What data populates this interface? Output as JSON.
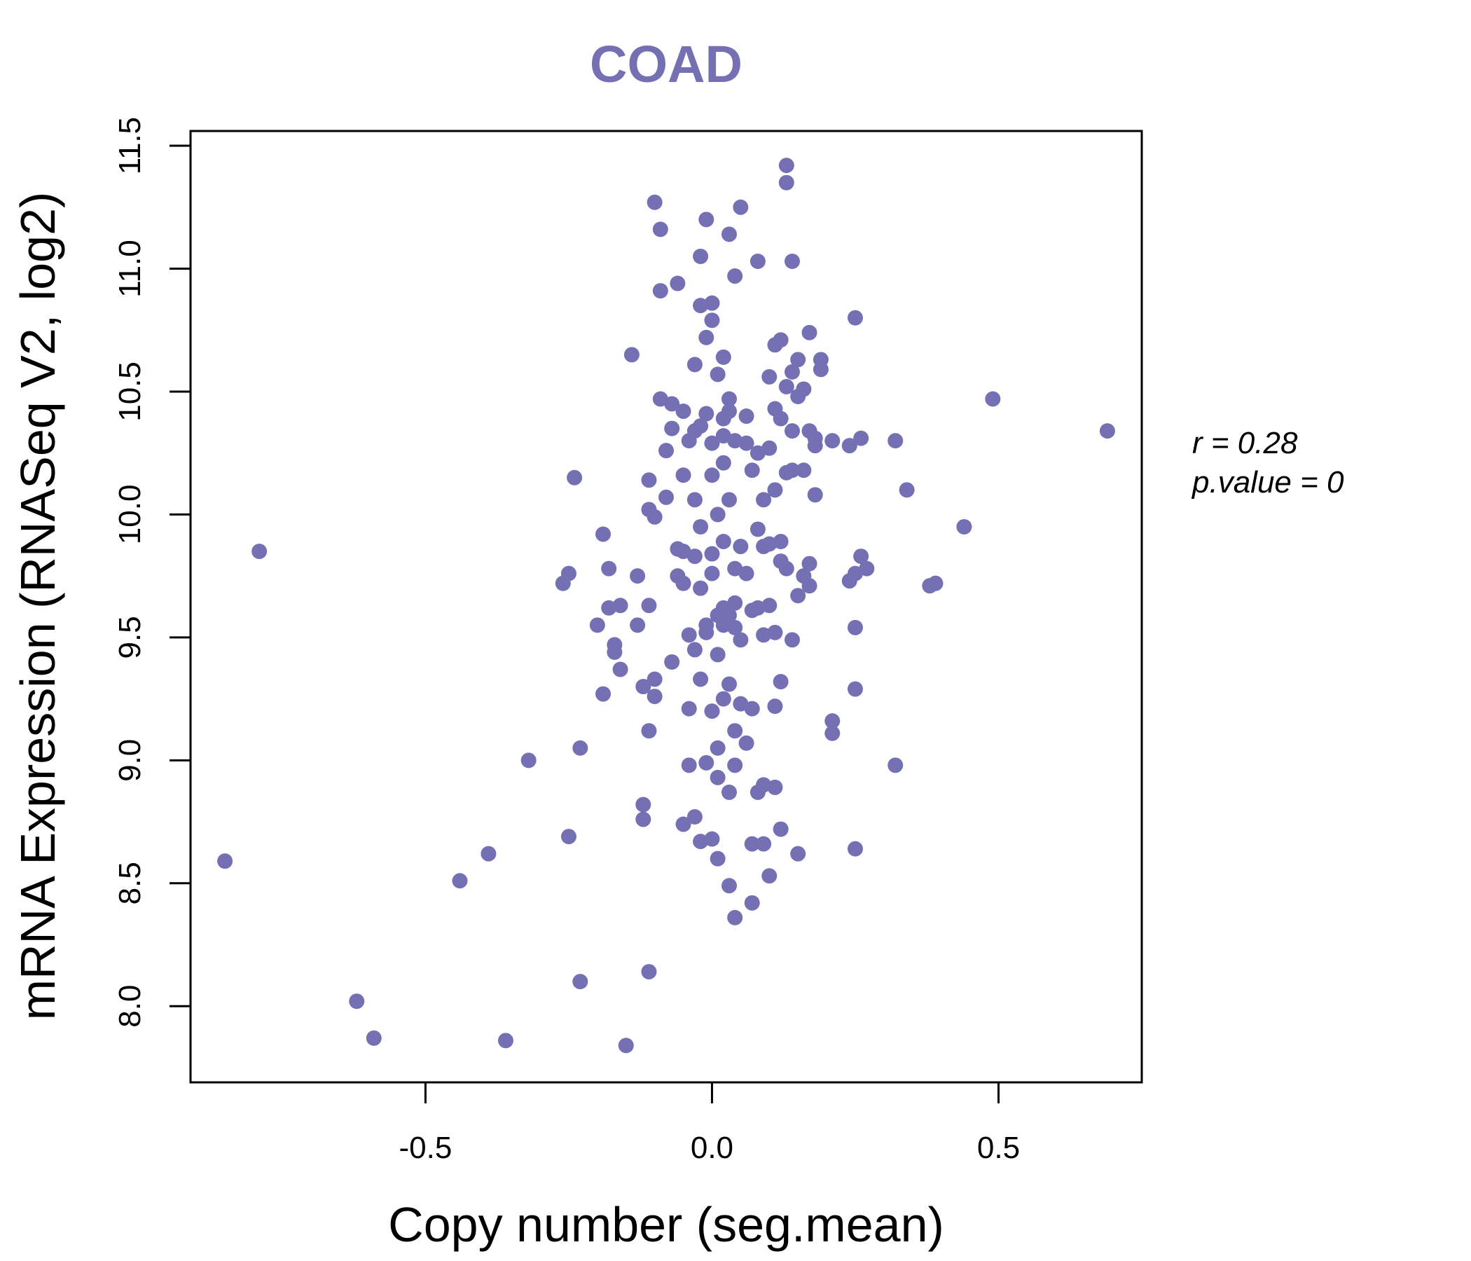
{
  "chart_data": {
    "type": "scatter",
    "title": "COAD",
    "xlabel": "Copy number (seg.mean)",
    "ylabel": "mRNA Expression (RNASeq V2, log2)",
    "xlim": [
      -0.91,
      0.75
    ],
    "ylim": [
      7.69,
      11.56
    ],
    "x_ticks": [
      -0.5,
      0.0,
      0.5
    ],
    "x_tick_labels": [
      "-0.5",
      "0.0",
      "0.5"
    ],
    "y_ticks": [
      8.0,
      8.5,
      9.0,
      9.5,
      10.0,
      10.5,
      11.0,
      11.5
    ],
    "y_tick_labels": [
      "8.0",
      "8.5",
      "9.0",
      "9.5",
      "10.0",
      "10.5",
      "11.0",
      "11.5"
    ],
    "grid": false,
    "marker_color": "#7570b3",
    "annotation": {
      "r_label": "r = 0.28",
      "p_label": "p.value = 0"
    },
    "points": [
      {
        "x": -0.85,
        "y": 8.59
      },
      {
        "x": -0.79,
        "y": 9.85
      },
      {
        "x": -0.62,
        "y": 8.02
      },
      {
        "x": -0.59,
        "y": 7.87
      },
      {
        "x": -0.44,
        "y": 8.51
      },
      {
        "x": -0.39,
        "y": 8.62
      },
      {
        "x": -0.36,
        "y": 7.86
      },
      {
        "x": -0.32,
        "y": 9.0
      },
      {
        "x": -0.26,
        "y": 9.72
      },
      {
        "x": -0.25,
        "y": 9.76
      },
      {
        "x": -0.25,
        "y": 8.69
      },
      {
        "x": -0.24,
        "y": 10.15
      },
      {
        "x": -0.23,
        "y": 9.05
      },
      {
        "x": -0.23,
        "y": 8.1
      },
      {
        "x": -0.2,
        "y": 9.55
      },
      {
        "x": -0.19,
        "y": 9.92
      },
      {
        "x": -0.19,
        "y": 9.27
      },
      {
        "x": -0.18,
        "y": 9.62
      },
      {
        "x": -0.18,
        "y": 9.78
      },
      {
        "x": -0.17,
        "y": 9.47
      },
      {
        "x": -0.17,
        "y": 9.44
      },
      {
        "x": -0.16,
        "y": 9.63
      },
      {
        "x": -0.16,
        "y": 9.37
      },
      {
        "x": -0.15,
        "y": 7.84
      },
      {
        "x": -0.14,
        "y": 10.65
      },
      {
        "x": -0.13,
        "y": 9.75
      },
      {
        "x": -0.13,
        "y": 9.55
      },
      {
        "x": -0.12,
        "y": 9.3
      },
      {
        "x": -0.12,
        "y": 8.82
      },
      {
        "x": -0.12,
        "y": 8.76
      },
      {
        "x": -0.11,
        "y": 8.14
      },
      {
        "x": -0.11,
        "y": 9.12
      },
      {
        "x": -0.11,
        "y": 9.63
      },
      {
        "x": -0.11,
        "y": 10.14
      },
      {
        "x": -0.11,
        "y": 10.02
      },
      {
        "x": -0.1,
        "y": 11.27
      },
      {
        "x": -0.1,
        "y": 9.99
      },
      {
        "x": -0.1,
        "y": 9.33
      },
      {
        "x": -0.1,
        "y": 9.26
      },
      {
        "x": -0.09,
        "y": 10.91
      },
      {
        "x": -0.09,
        "y": 11.16
      },
      {
        "x": -0.09,
        "y": 10.47
      },
      {
        "x": -0.08,
        "y": 10.07
      },
      {
        "x": -0.08,
        "y": 10.26
      },
      {
        "x": -0.07,
        "y": 10.35
      },
      {
        "x": -0.07,
        "y": 10.45
      },
      {
        "x": -0.07,
        "y": 9.4
      },
      {
        "x": -0.06,
        "y": 9.86
      },
      {
        "x": -0.06,
        "y": 9.75
      },
      {
        "x": -0.06,
        "y": 10.94
      },
      {
        "x": -0.05,
        "y": 10.16
      },
      {
        "x": -0.05,
        "y": 9.85
      },
      {
        "x": -0.05,
        "y": 8.74
      },
      {
        "x": -0.04,
        "y": 9.21
      },
      {
        "x": -0.04,
        "y": 9.51
      },
      {
        "x": -0.04,
        "y": 8.98
      },
      {
        "x": -0.03,
        "y": 10.34
      },
      {
        "x": -0.03,
        "y": 10.61
      },
      {
        "x": -0.03,
        "y": 10.06
      },
      {
        "x": -0.03,
        "y": 9.45
      },
      {
        "x": -0.03,
        "y": 8.77
      },
      {
        "x": -0.02,
        "y": 8.67
      },
      {
        "x": -0.02,
        "y": 10.85
      },
      {
        "x": -0.02,
        "y": 11.05
      },
      {
        "x": -0.02,
        "y": 9.33
      },
      {
        "x": -0.02,
        "y": 9.95
      },
      {
        "x": -0.01,
        "y": 11.2
      },
      {
        "x": -0.01,
        "y": 10.72
      },
      {
        "x": -0.01,
        "y": 9.55
      },
      {
        "x": -0.01,
        "y": 8.99
      },
      {
        "x": 0.0,
        "y": 10.79
      },
      {
        "x": 0.0,
        "y": 10.86
      },
      {
        "x": 0.0,
        "y": 10.29
      },
      {
        "x": 0.0,
        "y": 9.84
      },
      {
        "x": 0.0,
        "y": 9.2
      },
      {
        "x": 0.0,
        "y": 8.68
      },
      {
        "x": 0.01,
        "y": 10.57
      },
      {
        "x": 0.01,
        "y": 10.0
      },
      {
        "x": 0.01,
        "y": 9.43
      },
      {
        "x": 0.01,
        "y": 9.05
      },
      {
        "x": 0.01,
        "y": 8.6
      },
      {
        "x": 0.01,
        "y": 8.93
      },
      {
        "x": 0.02,
        "y": 10.64
      },
      {
        "x": 0.02,
        "y": 10.39
      },
      {
        "x": 0.02,
        "y": 10.21
      },
      {
        "x": 0.02,
        "y": 9.89
      },
      {
        "x": 0.02,
        "y": 9.62
      },
      {
        "x": 0.02,
        "y": 9.25
      },
      {
        "x": 0.03,
        "y": 11.14
      },
      {
        "x": 0.03,
        "y": 10.47
      },
      {
        "x": 0.03,
        "y": 10.06
      },
      {
        "x": 0.03,
        "y": 9.59
      },
      {
        "x": 0.03,
        "y": 9.31
      },
      {
        "x": 0.03,
        "y": 8.87
      },
      {
        "x": 0.03,
        "y": 8.49
      },
      {
        "x": 0.04,
        "y": 10.97
      },
      {
        "x": 0.04,
        "y": 10.3
      },
      {
        "x": 0.04,
        "y": 9.78
      },
      {
        "x": 0.04,
        "y": 9.54
      },
      {
        "x": 0.04,
        "y": 9.12
      },
      {
        "x": 0.04,
        "y": 8.36
      },
      {
        "x": 0.04,
        "y": 8.98
      },
      {
        "x": 0.05,
        "y": 11.25
      },
      {
        "x": 0.05,
        "y": 9.87
      },
      {
        "x": 0.05,
        "y": 9.49
      },
      {
        "x": 0.05,
        "y": 9.23
      },
      {
        "x": 0.06,
        "y": 10.4
      },
      {
        "x": 0.06,
        "y": 9.76
      },
      {
        "x": 0.06,
        "y": 9.07
      },
      {
        "x": 0.06,
        "y": 10.29
      },
      {
        "x": 0.07,
        "y": 10.18
      },
      {
        "x": 0.07,
        "y": 9.61
      },
      {
        "x": 0.07,
        "y": 9.21
      },
      {
        "x": 0.07,
        "y": 8.66
      },
      {
        "x": 0.07,
        "y": 8.42
      },
      {
        "x": 0.08,
        "y": 11.03
      },
      {
        "x": 0.08,
        "y": 10.25
      },
      {
        "x": 0.08,
        "y": 9.94
      },
      {
        "x": 0.08,
        "y": 9.62
      },
      {
        "x": 0.08,
        "y": 8.87
      },
      {
        "x": 0.09,
        "y": 10.06
      },
      {
        "x": 0.09,
        "y": 9.87
      },
      {
        "x": 0.09,
        "y": 9.51
      },
      {
        "x": 0.09,
        "y": 8.9
      },
      {
        "x": 0.09,
        "y": 8.66
      },
      {
        "x": 0.1,
        "y": 10.56
      },
      {
        "x": 0.1,
        "y": 10.27
      },
      {
        "x": 0.1,
        "y": 9.63
      },
      {
        "x": 0.1,
        "y": 9.88
      },
      {
        "x": 0.1,
        "y": 8.53
      },
      {
        "x": 0.11,
        "y": 10.69
      },
      {
        "x": 0.11,
        "y": 10.43
      },
      {
        "x": 0.11,
        "y": 10.1
      },
      {
        "x": 0.11,
        "y": 9.52
      },
      {
        "x": 0.11,
        "y": 9.22
      },
      {
        "x": 0.11,
        "y": 8.89
      },
      {
        "x": 0.12,
        "y": 10.71
      },
      {
        "x": 0.12,
        "y": 10.39
      },
      {
        "x": 0.12,
        "y": 9.89
      },
      {
        "x": 0.12,
        "y": 9.81
      },
      {
        "x": 0.12,
        "y": 9.32
      },
      {
        "x": 0.12,
        "y": 8.72
      },
      {
        "x": 0.13,
        "y": 11.42
      },
      {
        "x": 0.13,
        "y": 11.35
      },
      {
        "x": 0.13,
        "y": 10.17
      },
      {
        "x": 0.13,
        "y": 9.78
      },
      {
        "x": 0.13,
        "y": 10.52
      },
      {
        "x": 0.14,
        "y": 11.03
      },
      {
        "x": 0.14,
        "y": 10.58
      },
      {
        "x": 0.14,
        "y": 10.34
      },
      {
        "x": 0.14,
        "y": 10.18
      },
      {
        "x": 0.14,
        "y": 9.49
      },
      {
        "x": 0.15,
        "y": 10.63
      },
      {
        "x": 0.15,
        "y": 10.48
      },
      {
        "x": 0.15,
        "y": 9.67
      },
      {
        "x": 0.15,
        "y": 8.62
      },
      {
        "x": 0.16,
        "y": 10.51
      },
      {
        "x": 0.16,
        "y": 10.18
      },
      {
        "x": 0.16,
        "y": 9.75
      },
      {
        "x": 0.17,
        "y": 10.74
      },
      {
        "x": 0.17,
        "y": 10.34
      },
      {
        "x": 0.17,
        "y": 9.8
      },
      {
        "x": 0.17,
        "y": 9.71
      },
      {
        "x": 0.18,
        "y": 10.28
      },
      {
        "x": 0.18,
        "y": 10.31
      },
      {
        "x": 0.18,
        "y": 10.08
      },
      {
        "x": 0.19,
        "y": 10.59
      },
      {
        "x": 0.19,
        "y": 10.63
      },
      {
        "x": 0.21,
        "y": 10.3
      },
      {
        "x": 0.21,
        "y": 9.16
      },
      {
        "x": 0.21,
        "y": 9.11
      },
      {
        "x": 0.24,
        "y": 10.28
      },
      {
        "x": 0.24,
        "y": 9.73
      },
      {
        "x": 0.25,
        "y": 10.8
      },
      {
        "x": 0.25,
        "y": 9.54
      },
      {
        "x": 0.25,
        "y": 9.76
      },
      {
        "x": 0.25,
        "y": 9.29
      },
      {
        "x": 0.25,
        "y": 8.64
      },
      {
        "x": 0.26,
        "y": 10.31
      },
      {
        "x": 0.26,
        "y": 9.83
      },
      {
        "x": 0.27,
        "y": 9.78
      },
      {
        "x": 0.32,
        "y": 10.3
      },
      {
        "x": 0.32,
        "y": 8.98
      },
      {
        "x": 0.34,
        "y": 10.1
      },
      {
        "x": 0.38,
        "y": 9.71
      },
      {
        "x": 0.39,
        "y": 9.72
      },
      {
        "x": 0.44,
        "y": 9.95
      },
      {
        "x": 0.49,
        "y": 10.47
      },
      {
        "x": 0.69,
        "y": 10.34
      },
      {
        "x": -0.05,
        "y": 10.42
      },
      {
        "x": -0.04,
        "y": 10.3
      },
      {
        "x": -0.02,
        "y": 10.36
      },
      {
        "x": -0.01,
        "y": 10.41
      },
      {
        "x": 0.0,
        "y": 10.16
      },
      {
        "x": 0.02,
        "y": 10.32
      },
      {
        "x": 0.03,
        "y": 10.42
      },
      {
        "x": -0.05,
        "y": 9.72
      },
      {
        "x": -0.03,
        "y": 9.83
      },
      {
        "x": -0.01,
        "y": 9.52
      },
      {
        "x": 0.01,
        "y": 9.59
      },
      {
        "x": 0.0,
        "y": 9.76
      },
      {
        "x": 0.02,
        "y": 9.55
      },
      {
        "x": -0.02,
        "y": 9.7
      },
      {
        "x": 0.04,
        "y": 9.64
      }
    ]
  }
}
